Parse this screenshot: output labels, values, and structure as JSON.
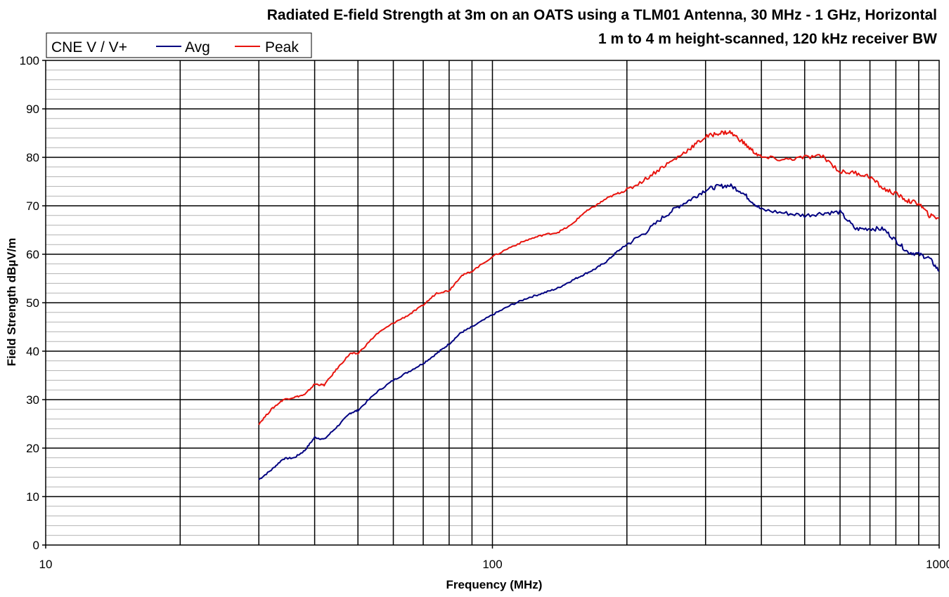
{
  "chart_data": {
    "type": "line",
    "title_lines": [
      "Radiated E-field Strength at 3m on an OATS using a TLM01 Antenna, 30 MHz - 1 GHz, Horizontal",
      "1 m to 4 m height-scanned, 120 kHz receiver BW"
    ],
    "xlabel": "Frequency (MHz)",
    "ylabel": "Field Strength dBµV/m",
    "x_scale": "log",
    "xlim": [
      10,
      1000
    ],
    "ylim": [
      0,
      100
    ],
    "x_tick_labels": [
      "10",
      "100",
      "1000"
    ],
    "y_tick_labels": [
      "0",
      "10",
      "20",
      "30",
      "40",
      "50",
      "60",
      "70",
      "80",
      "90",
      "100"
    ],
    "grid": {
      "major": true,
      "minor_y": true,
      "minor_x": true
    },
    "legend": {
      "position": "top-left",
      "title": "CNE V / V+",
      "entries": [
        "Avg",
        "Peak"
      ]
    },
    "colors": {
      "avg": "#000080",
      "peak": "#e8140e"
    },
    "series": [
      {
        "name": "Avg",
        "x": [
          30,
          32,
          34,
          36,
          38,
          40,
          42,
          45,
          48,
          50,
          55,
          60,
          65,
          70,
          75,
          80,
          85,
          90,
          100,
          110,
          120,
          130,
          140,
          150,
          160,
          170,
          180,
          190,
          200,
          220,
          240,
          260,
          280,
          300,
          320,
          340,
          360,
          380,
          400,
          450,
          500,
          550,
          600,
          650,
          700,
          750,
          800,
          850,
          900,
          950,
          1000
        ],
        "y": [
          13.5,
          15.5,
          17.8,
          18,
          19.5,
          22.2,
          21.8,
          24.5,
          27.2,
          27.8,
          31.5,
          34,
          35.8,
          37.5,
          39.5,
          41.5,
          43.8,
          45,
          47.5,
          49.5,
          51,
          52,
          53,
          54.5,
          55.8,
          57,
          58.5,
          60.5,
          62,
          64.5,
          67.5,
          69.8,
          71.5,
          73.3,
          74,
          74.2,
          73,
          71,
          69.2,
          68.5,
          68,
          68.5,
          68.7,
          65.2,
          65.3,
          65.2,
          62.8,
          60.5,
          60,
          59.2,
          56.5
        ]
      },
      {
        "name": "Peak",
        "x": [
          30,
          32,
          34,
          36,
          38,
          40,
          42,
          45,
          48,
          50,
          55,
          60,
          65,
          70,
          75,
          80,
          85,
          90,
          100,
          110,
          120,
          130,
          140,
          150,
          160,
          170,
          180,
          190,
          200,
          220,
          240,
          260,
          280,
          300,
          320,
          340,
          360,
          380,
          400,
          450,
          500,
          550,
          600,
          650,
          700,
          750,
          800,
          850,
          900,
          950,
          1000
        ],
        "y": [
          25,
          28,
          30,
          30.5,
          31,
          33.2,
          33,
          36.5,
          39.5,
          39.5,
          43.5,
          45.8,
          47.5,
          49.5,
          52,
          52.5,
          55.5,
          56.5,
          59.5,
          61.5,
          63,
          64,
          64.5,
          66,
          68.5,
          70,
          71.5,
          72.5,
          73.2,
          75.5,
          78,
          80,
          82.2,
          84.2,
          85,
          85.2,
          83.5,
          81.5,
          80,
          79.5,
          80,
          80.2,
          77,
          76.8,
          76,
          73.5,
          72.5,
          71,
          70.5,
          68,
          67.5
        ]
      }
    ]
  }
}
